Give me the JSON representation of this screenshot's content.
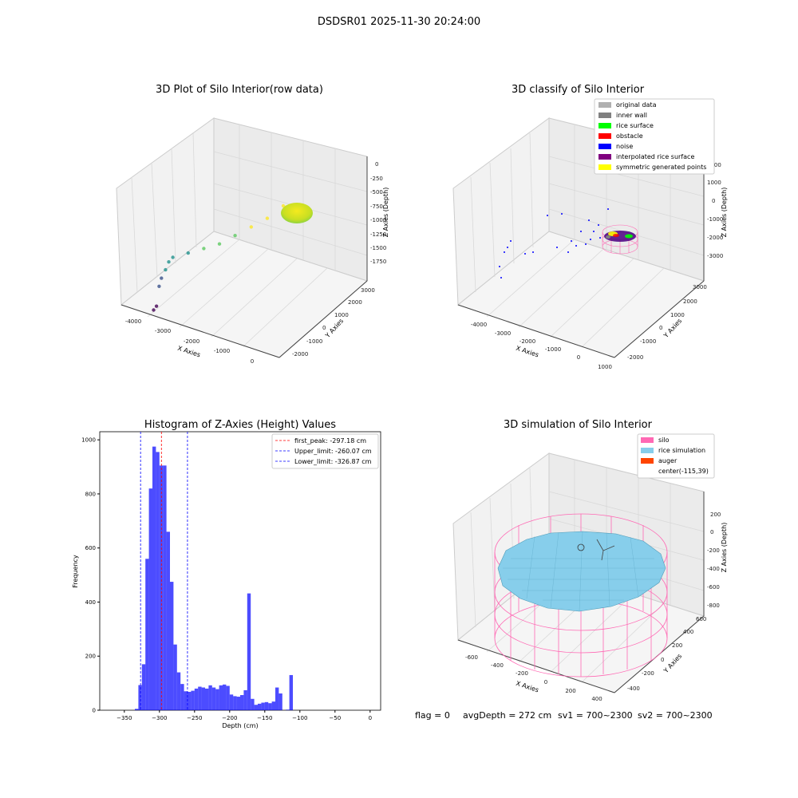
{
  "figure": {
    "suptitle": "DSDSR01 2025-11-30 20:24:00",
    "footer": {
      "flag": "flag = 0",
      "avg": "avgDepth = 272 cm",
      "sv1": "sv1 = 700~2300",
      "sv2": "sv2 = 700~2300"
    }
  },
  "chart_data": [
    {
      "type": "scatter",
      "title": "3D Plot of Silo Interior(row data)",
      "xlabel": "X Axies",
      "ylabel": "Y Axies",
      "zlabel": "Z Axies (Depth)",
      "x_ticks": [
        "-4000",
        "-3000",
        "-2000",
        "-1000",
        "0"
      ],
      "y_ticks": [
        "-2000",
        "-1000",
        "0",
        "1000",
        "2000",
        "3000"
      ],
      "z_ticks": [
        "0",
        "-250",
        "-500",
        "-750",
        "-1000",
        "-1250",
        "-1500",
        "-1750"
      ],
      "colormap": "viridis",
      "series": [
        {
          "points": [
            [
              -4000,
              -1500,
              -1900
            ],
            [
              -3900,
              -1500,
              -1850
            ],
            [
              -3850,
              -1200,
              -1600
            ],
            [
              -3800,
              -1000,
              -1500
            ],
            [
              -3700,
              -700,
              -1400
            ],
            [
              -3600,
              -600,
              -1300
            ],
            [
              -3500,
              -300,
              -1250
            ],
            [
              -3000,
              -100,
              -1200
            ],
            [
              -2500,
              200,
              -1150
            ],
            [
              -2000,
              500,
              -1100
            ],
            [
              -1500,
              800,
              -1000
            ],
            [
              -1000,
              1200,
              -900
            ],
            [
              -500,
              1600,
              -800
            ],
            [
              0,
              2000,
              -650
            ]
          ]
        }
      ]
    },
    {
      "type": "scatter",
      "title": "3D classify of Silo Interior",
      "xlabel": "X Axies",
      "ylabel": "Y Axies",
      "zlabel": "Z Axies (Depth)",
      "x_ticks": [
        "-4000",
        "-3000",
        "-2000",
        "-1000",
        "0",
        "1000"
      ],
      "y_ticks": [
        "-2000",
        "-1000",
        "0",
        "1000",
        "2000",
        "3000"
      ],
      "z_ticks": [
        "2000",
        "1000",
        "0",
        "-1000",
        "-2000",
        "-3000"
      ],
      "legend": [
        {
          "name": "original data",
          "color": "#b0b0b0"
        },
        {
          "name": "inner wall",
          "color": "#808080"
        },
        {
          "name": "rice surface",
          "color": "#00ff00"
        },
        {
          "name": "obstacle",
          "color": "#ff0000"
        },
        {
          "name": "noise",
          "color": "#0000ff"
        },
        {
          "name": "interpolated rice surface",
          "color": "#800080"
        },
        {
          "name": "symmetric generated points",
          "color": "#ffff00"
        }
      ],
      "legend_position": "upper right"
    },
    {
      "type": "histogram",
      "title": "Histogram of Z-Axies (Height) Values",
      "xlabel": "Depth (cm)",
      "ylabel": "Frequency",
      "xlim": [
        -385,
        15
      ],
      "ylim": [
        0,
        1030
      ],
      "x_ticks": [
        -350,
        -300,
        -250,
        -200,
        -150,
        -100,
        -50,
        0
      ],
      "y_ticks": [
        0,
        200,
        400,
        600,
        800,
        1000
      ],
      "bar_color": "#0000ff",
      "bins": [
        [
          -332.5,
          5
        ],
        [
          -327.5,
          93
        ],
        [
          -322.5,
          170
        ],
        [
          -317.5,
          560
        ],
        [
          -312.5,
          820
        ],
        [
          -307.5,
          975
        ],
        [
          -302.5,
          955
        ],
        [
          -297.5,
          905
        ],
        [
          -292.5,
          905
        ],
        [
          -287.5,
          660
        ],
        [
          -282.5,
          475
        ],
        [
          -277.5,
          243
        ],
        [
          -272.5,
          140
        ],
        [
          -267.5,
          97
        ],
        [
          -262.5,
          70
        ],
        [
          -257.5,
          68
        ],
        [
          -252.5,
          72
        ],
        [
          -247.5,
          80
        ],
        [
          -242.5,
          87
        ],
        [
          -237.5,
          84
        ],
        [
          -232.5,
          80
        ],
        [
          -227.5,
          92
        ],
        [
          -222.5,
          84
        ],
        [
          -217.5,
          78
        ],
        [
          -212.5,
          92
        ],
        [
          -207.5,
          95
        ],
        [
          -202.5,
          90
        ],
        [
          -197.5,
          58
        ],
        [
          -192.5,
          52
        ],
        [
          -187.5,
          50
        ],
        [
          -182.5,
          56
        ],
        [
          -177.5,
          74
        ],
        [
          -172.5,
          432
        ],
        [
          -167.5,
          42
        ],
        [
          -162.5,
          20
        ],
        [
          -157.5,
          24
        ],
        [
          -152.5,
          28
        ],
        [
          -147.5,
          30
        ],
        [
          -142.5,
          26
        ],
        [
          -137.5,
          32
        ],
        [
          -132.5,
          84
        ],
        [
          -127.5,
          62
        ],
        [
          -117.5,
          2
        ],
        [
          -112.5,
          130
        ]
      ],
      "lines": [
        {
          "label": "first_peak: -297.18 cm",
          "x": -297.18,
          "color": "#ff0000",
          "style": "dashed"
        },
        {
          "label": "Upper_limit: -260.07 cm",
          "x": -260.07,
          "color": "#0000ff",
          "style": "dashed"
        },
        {
          "label": "Lower_limit: -326.87 cm",
          "x": -326.87,
          "color": "#0000ff",
          "style": "dashed"
        }
      ],
      "legend_position": "upper right"
    },
    {
      "type": "surface",
      "title": "3D simulation of Silo Interior",
      "xlabel": "X Axies",
      "ylabel": "Y Axies",
      "zlabel": "Z Axies (Depth)",
      "x_ticks": [
        "-600",
        "-400",
        "-200",
        "0",
        "200",
        "400"
      ],
      "y_ticks": [
        "-400",
        "-200",
        "0",
        "200",
        "400",
        "600"
      ],
      "z_ticks": [
        "200",
        "0",
        "-200",
        "-400",
        "-600",
        "-800"
      ],
      "legend": [
        {
          "name": "silo",
          "color": "#ff69b4"
        },
        {
          "name": "rice simulation",
          "color": "#87ceeb"
        },
        {
          "name": "auger",
          "color": "#ff4500"
        },
        {
          "name": "center(-115,39)",
          "color": ""
        }
      ],
      "legend_position": "upper right"
    }
  ]
}
